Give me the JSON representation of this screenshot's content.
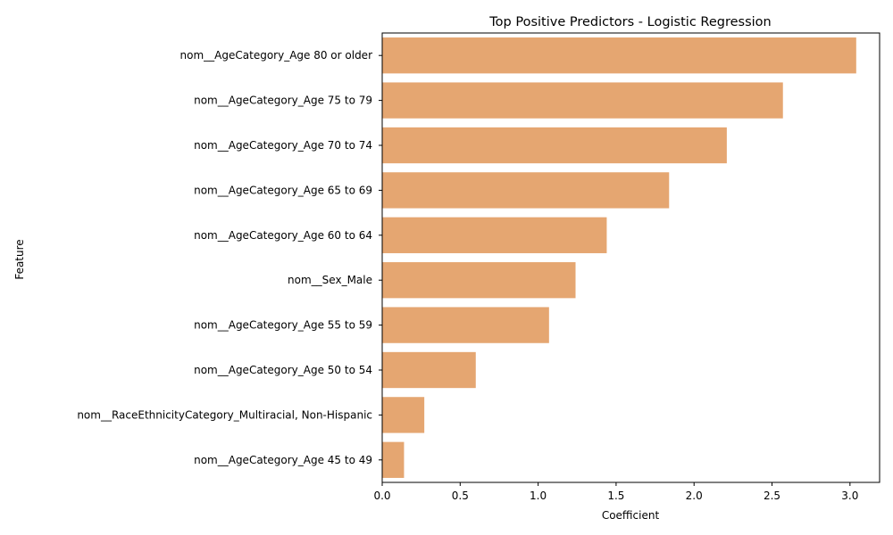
{
  "chart_data": {
    "type": "bar",
    "orientation": "horizontal",
    "title": "Top Positive Predictors - Logistic Regression",
    "xlabel": "Coefficient",
    "ylabel": "Feature",
    "xlim": [
      0,
      3.19
    ],
    "xticks": [
      "0.0",
      "0.5",
      "1.0",
      "1.5",
      "2.0",
      "2.5",
      "3.0"
    ],
    "grid": false,
    "bar_color": "#e5a671",
    "categories": [
      "nom__AgeCategory_Age 80 or older",
      "nom__AgeCategory_Age 75 to 79",
      "nom__AgeCategory_Age 70 to 74",
      "nom__AgeCategory_Age 65 to 69",
      "nom__AgeCategory_Age 60 to 64",
      "nom__Sex_Male",
      "nom__AgeCategory_Age 55 to 59",
      "nom__AgeCategory_Age 50 to 54",
      "nom__RaceEthnicityCategory_Multiracial, Non-Hispanic",
      "nom__AgeCategory_Age 45 to 49"
    ],
    "values": [
      3.04,
      2.57,
      2.21,
      1.84,
      1.44,
      1.24,
      1.07,
      0.6,
      0.27,
      0.14
    ]
  }
}
